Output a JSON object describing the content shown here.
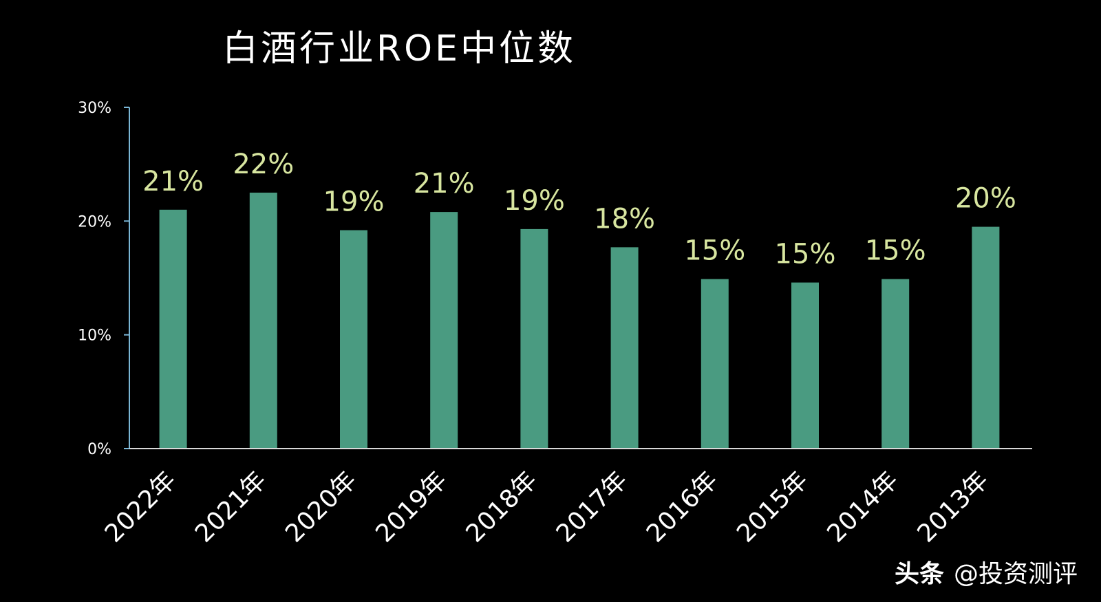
{
  "chart_data": {
    "type": "bar",
    "title": "白酒行业ROE中位数",
    "categories": [
      "2022年",
      "2021年",
      "2020年",
      "2019年",
      "2018年",
      "2017年",
      "2016年",
      "2015年",
      "2014年",
      "2013年"
    ],
    "values": [
      21.0,
      22.5,
      19.2,
      20.8,
      19.3,
      17.7,
      14.9,
      14.6,
      14.9,
      19.5
    ],
    "data_labels": [
      "21%",
      "22%",
      "19%",
      "21%",
      "19%",
      "18%",
      "15%",
      "15%",
      "15%",
      "20%"
    ],
    "yticks": [
      "0%",
      "10%",
      "20%",
      "30%"
    ],
    "ylim": [
      0,
      30
    ],
    "xlabel": "",
    "ylabel": "",
    "grid": false,
    "legend": "none",
    "colors": {
      "bar": "#4a9b81",
      "data_label": "#d8e6a0",
      "axis": "#7ab6d6",
      "text": "#ffffff"
    }
  },
  "watermark": {
    "brand": "头条",
    "account": "@投资测评"
  }
}
